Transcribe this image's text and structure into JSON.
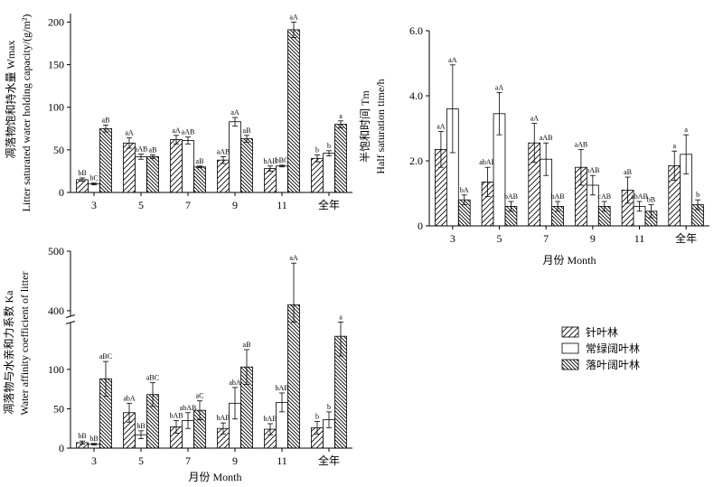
{
  "colors": {
    "ink": "#000000",
    "bar_fill": "#ffffff"
  },
  "legend": {
    "position": "right-middle",
    "items": [
      {
        "label": "针叶林",
        "pattern": "hatch-sparse-up"
      },
      {
        "label": "常绿阔叶林",
        "pattern": "none"
      },
      {
        "label": "落叶阔叶林",
        "pattern": "hatch-dense-down"
      }
    ]
  },
  "chart_data": [
    {
      "id": "wmax",
      "type": "bar",
      "position": "top-left",
      "categories": [
        "3",
        "5",
        "7",
        "9",
        "11",
        "全年"
      ],
      "ylabel_cn": "凋落物饱和持水量 Wmax",
      "ylabel_en": "Litter saturated water holding capacity/(g/m²)",
      "ylim": [
        0,
        210
      ],
      "yticks": [
        "0",
        "50",
        "100",
        "150",
        "200"
      ],
      "ytick_values": [
        0,
        50,
        100,
        150,
        200
      ],
      "series": [
        {
          "name": "针叶林",
          "values": [
            15,
            58,
            62,
            38,
            28,
            40
          ],
          "err": [
            2,
            6,
            5,
            4,
            3,
            4
          ],
          "labels": [
            "bB",
            "aA",
            "aA",
            "aAB",
            "bAB",
            "b"
          ]
        },
        {
          "name": "常绿阔叶林",
          "values": [
            10,
            42,
            61,
            83,
            31,
            46
          ],
          "err": [
            1,
            3,
            4,
            5,
            1,
            3
          ],
          "labels": [
            "bC",
            "aAB",
            "aAB",
            "aA",
            "bBC",
            "b"
          ]
        },
        {
          "name": "落叶阔叶林",
          "values": [
            75,
            42,
            30,
            63,
            191,
            80
          ],
          "err": [
            4,
            2,
            1,
            4,
            9,
            4
          ],
          "labels": [
            "aB",
            "aB",
            "aB",
            "aB",
            "aA",
            "a"
          ]
        }
      ]
    },
    {
      "id": "tm",
      "type": "bar",
      "position": "top-right",
      "categories": [
        "3",
        "5",
        "7",
        "9",
        "11",
        "全年"
      ],
      "xlabel": "月份 Month",
      "ylabel_cn": "半饱和时间 Tm",
      "ylabel_en": "Half saturation time/h",
      "ylim": [
        0,
        6.0
      ],
      "yticks": [
        "0",
        "2.0",
        "4.0",
        "6.0"
      ],
      "ytick_values": [
        0,
        2,
        4,
        6
      ],
      "series": [
        {
          "name": "针叶林",
          "values": [
            2.35,
            1.35,
            2.55,
            1.8,
            1.1,
            1.85
          ],
          "err": [
            0.55,
            0.45,
            0.6,
            0.55,
            0.4,
            0.45
          ],
          "labels": [
            "aA",
            "abAB",
            "aA",
            "aAB",
            "aB",
            "a"
          ]
        },
        {
          "name": "常绿阔叶林",
          "values": [
            3.6,
            3.45,
            2.05,
            1.25,
            0.6,
            2.2
          ],
          "err": [
            1.35,
            0.65,
            0.5,
            0.3,
            0.15,
            0.6
          ],
          "labels": [
            "aA",
            "aA",
            "aAB",
            "bAB",
            "abAB",
            "a"
          ]
        },
        {
          "name": "落叶阔叶林",
          "values": [
            0.8,
            0.6,
            0.6,
            0.6,
            0.45,
            0.65
          ],
          "err": [
            0.15,
            0.15,
            0.15,
            0.15,
            0.2,
            0.15
          ],
          "labels": [
            "bA",
            "bAB",
            "bAB",
            "cAB",
            "bB",
            "b"
          ]
        }
      ]
    },
    {
      "id": "ka",
      "type": "bar",
      "position": "bottom-left",
      "categories": [
        "3",
        "5",
        "7",
        "9",
        "11",
        "全年"
      ],
      "xlabel": "月份 Month",
      "ylabel_cn": "凋落物与水亲和力系数 Ka",
      "ylabel_en": "Water affinity coefficient of litter",
      "axis_break": [
        160,
        390
      ],
      "ylim": [
        0,
        500
      ],
      "yticks": [
        "0",
        "50",
        "100",
        "400",
        "500"
      ],
      "ytick_values": [
        0,
        50,
        100,
        400,
        500
      ],
      "series": [
        {
          "name": "针叶林",
          "values": [
            7,
            45,
            27,
            25,
            24,
            26
          ],
          "err": [
            2,
            12,
            8,
            7,
            7,
            8
          ],
          "labels": [
            "bB",
            "abA",
            "bAB",
            "bAB",
            "bAB",
            "b"
          ]
        },
        {
          "name": "常绿阔叶林",
          "values": [
            5,
            17,
            35,
            57,
            58,
            36
          ],
          "err": [
            1,
            5,
            10,
            20,
            12,
            10
          ],
          "labels": [
            "bB",
            "bB",
            "abAB",
            "abA",
            "bAB",
            "b"
          ]
        },
        {
          "name": "落叶阔叶林",
          "values": [
            88,
            68,
            48,
            103,
            410,
            142
          ],
          "err": [
            22,
            15,
            12,
            22,
            70,
            25
          ],
          "labels": [
            "aBC",
            "aBC",
            "aC",
            "aB",
            "aA",
            "a"
          ]
        }
      ]
    }
  ]
}
